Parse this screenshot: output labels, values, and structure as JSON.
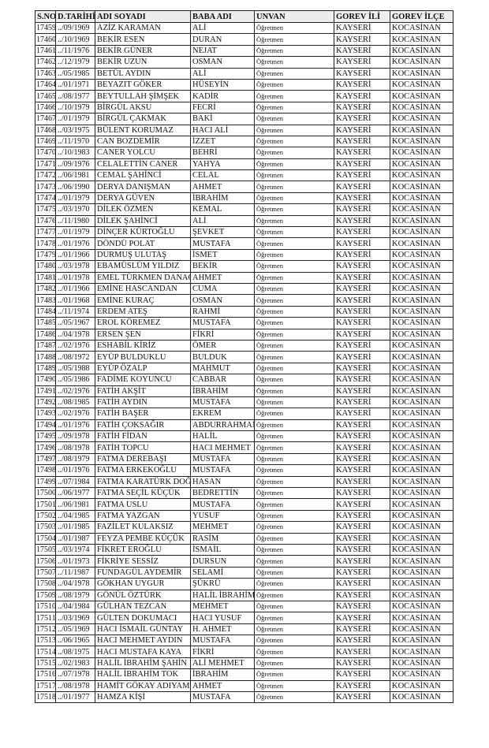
{
  "headers": [
    "S.NO",
    "D.TARİHİ",
    "ADI SOYADI",
    "BABA ADI",
    "UNVAN",
    "GOREV İLİ",
    "GOREV İLÇE"
  ],
  "rows": [
    [
      "17459",
      "../09/1969",
      "AZİZ KARAMAN",
      "ALİ",
      "Öğretmen",
      "KAYSERİ",
      "KOCASİNAN"
    ],
    [
      "17460",
      "../10/1969",
      "BEKİR ESEN",
      "DURAN",
      "Öğretmen",
      "KAYSERİ",
      "KOCASİNAN"
    ],
    [
      "17461",
      "../11/1976",
      "BEKİR GÜNER",
      "NEJAT",
      "Öğretmen",
      "KAYSERİ",
      "KOCASİNAN"
    ],
    [
      "17462",
      "../12/1979",
      "BEKİR UZUN",
      "OSMAN",
      "Öğretmen",
      "KAYSERİ",
      "KOCASİNAN"
    ],
    [
      "17463",
      "../05/1985",
      "BETÜL AYDIN",
      "ALİ",
      "Öğretmen",
      "KAYSERİ",
      "KOCASİNAN"
    ],
    [
      "17464",
      "../01/1971",
      "BEYAZIT GÖKER",
      "HÜSEYİN",
      "Öğretmen",
      "KAYSERİ",
      "KOCASİNAN"
    ],
    [
      "17465",
      "../08/1977",
      "BEYTULLAH ŞİMŞEK",
      "KADİR",
      "Öğretmen",
      "KAYSERİ",
      "KOCASİNAN"
    ],
    [
      "17466",
      "../10/1979",
      "BİRGÜL AKSU",
      "FECRİ",
      "Öğretmen",
      "KAYSERİ",
      "KOCASİNAN"
    ],
    [
      "17467",
      "../01/1979",
      "BİRGÜL ÇAKMAK",
      "BAKİ",
      "Öğretmen",
      "KAYSERİ",
      "KOCASİNAN"
    ],
    [
      "17468",
      "../03/1975",
      "BÜLENT KORUMAZ",
      "HACI ALİ",
      "Öğretmen",
      "KAYSERİ",
      "KOCASİNAN"
    ],
    [
      "17469",
      "../11/1970",
      "CAN BOZDEMİR",
      "İZZET",
      "Öğretmen",
      "KAYSERİ",
      "KOCASİNAN"
    ],
    [
      "17470",
      "../10/1983",
      "CANER YOLCU",
      "BEHRİ",
      "Öğretmen",
      "KAYSERİ",
      "KOCASİNAN"
    ],
    [
      "17471",
      "../09/1976",
      "CELALETTİN CANER",
      "YAHYA",
      "Öğretmen",
      "KAYSERİ",
      "KOCASİNAN"
    ],
    [
      "17472",
      "../06/1981",
      "CEMAL ŞAHİNCİ",
      "CELAL",
      "Öğretmen",
      "KAYSERİ",
      "KOCASİNAN"
    ],
    [
      "17473",
      "../06/1990",
      "DERYA DANIŞMAN",
      "AHMET",
      "Öğretmen",
      "KAYSERİ",
      "KOCASİNAN"
    ],
    [
      "17474",
      "../01/1979",
      "DERYA GÜVEN",
      "İBRAHİM",
      "Öğretmen",
      "KAYSERİ",
      "KOCASİNAN"
    ],
    [
      "17475",
      "../03/1970",
      "DİLEK ÖZMEN",
      "KEMAL",
      "Öğretmen",
      "KAYSERİ",
      "KOCASİNAN"
    ],
    [
      "17476",
      "../11/1980",
      "DİLEK ŞAHİNCİ",
      "ALİ",
      "Öğretmen",
      "KAYSERİ",
      "KOCASİNAN"
    ],
    [
      "17477",
      "../01/1979",
      "DİNÇER KÜRTOĞLU",
      "ŞEVKET",
      "Öğretmen",
      "KAYSERİ",
      "KOCASİNAN"
    ],
    [
      "17478",
      "../01/1976",
      "DÖNDÜ POLAT",
      "MUSTAFA",
      "Öğretmen",
      "KAYSERİ",
      "KOCASİNAN"
    ],
    [
      "17479",
      "../01/1966",
      "DURMUŞ ULUTAŞ",
      "İSMET",
      "Öğretmen",
      "KAYSERİ",
      "KOCASİNAN"
    ],
    [
      "17480",
      "../03/1978",
      "EBAMÜSLÜM YILDIZ",
      "BEKİR",
      "Öğretmen",
      "KAYSERİ",
      "KOCASİNAN"
    ],
    [
      "17481",
      "../01/1978",
      "EMEL TÜRKMEN DANACI",
      "AHMET",
      "Öğretmen",
      "KAYSERİ",
      "KOCASİNAN"
    ],
    [
      "17482",
      "../01/1966",
      "EMİNE HASCANDAN",
      "CUMA",
      "Öğretmen",
      "KAYSERİ",
      "KOCASİNAN"
    ],
    [
      "17483",
      "../01/1968",
      "EMİNE KURAÇ",
      "OSMAN",
      "Öğretmen",
      "KAYSERİ",
      "KOCASİNAN"
    ],
    [
      "17484",
      "../11/1974",
      "ERDEM ATEŞ",
      "RAHMİ",
      "Öğretmen",
      "KAYSERİ",
      "KOCASİNAN"
    ],
    [
      "17485",
      "../05/1967",
      "EROL KÖREMEZ",
      "MUSTAFA",
      "Öğretmen",
      "KAYSERİ",
      "KOCASİNAN"
    ],
    [
      "17486",
      "../04/1978",
      "ERSEN ŞEN",
      "FİKRİ",
      "Öğretmen",
      "KAYSERİ",
      "KOCASİNAN"
    ],
    [
      "17487",
      "../02/1976",
      "ESHABİL KİRİZ",
      "ÖMER",
      "Öğretmen",
      "KAYSERİ",
      "KOCASİNAN"
    ],
    [
      "17488",
      "../08/1972",
      "EYÜP BULDUKLU",
      "BULDUK",
      "Öğretmen",
      "KAYSERİ",
      "KOCASİNAN"
    ],
    [
      "17489",
      "../05/1988",
      "EYÜP ÖZALP",
      "MAHMUT",
      "Öğretmen",
      "KAYSERİ",
      "KOCASİNAN"
    ],
    [
      "17490",
      "../05/1986",
      "FADİME KOYUNCU",
      "CABBAR",
      "Öğretmen",
      "KAYSERİ",
      "KOCASİNAN"
    ],
    [
      "17491",
      "../02/1976",
      "FATİH AKŞİT",
      "İBRAHİM",
      "Öğretmen",
      "KAYSERİ",
      "KOCASİNAN"
    ],
    [
      "17492",
      "../08/1985",
      "FATİH AYDIN",
      "MUSTAFA",
      "Öğretmen",
      "KAYSERİ",
      "KOCASİNAN"
    ],
    [
      "17493",
      "../02/1976",
      "FATİH BAŞER",
      "EKREM",
      "Öğretmen",
      "KAYSERİ",
      "KOCASİNAN"
    ],
    [
      "17494",
      "../01/1976",
      "FATİH ÇOKSAĞIR",
      "ABDURRAHMAN",
      "Öğretmen",
      "KAYSERİ",
      "KOCASİNAN"
    ],
    [
      "17495",
      "../09/1978",
      "FATİH FİDAN",
      "HALİL",
      "Öğretmen",
      "KAYSERİ",
      "KOCASİNAN"
    ],
    [
      "17496",
      "../08/1978",
      "FATİH TOPCU",
      "HACI MEHMET",
      "Öğretmen",
      "KAYSERİ",
      "KOCASİNAN"
    ],
    [
      "17497",
      "../08/1979",
      "FATMA DEREBAŞI",
      "MUSTAFA",
      "Öğretmen",
      "KAYSERİ",
      "KOCASİNAN"
    ],
    [
      "17498",
      "../01/1976",
      "FATMA ERKEKOĞLU",
      "MUSTAFA",
      "Öğretmen",
      "KAYSERİ",
      "KOCASİNAN"
    ],
    [
      "17499",
      "../07/1984",
      "FATMA KARATÜRK DOĞRU",
      "HASAN",
      "Öğretmen",
      "KAYSERİ",
      "KOCASİNAN"
    ],
    [
      "17500",
      "../06/1977",
      "FATMA SEÇİL KÜÇÜK",
      "BEDRETTİN",
      "Öğretmen",
      "KAYSERİ",
      "KOCASİNAN"
    ],
    [
      "17501",
      "../06/1981",
      "FATMA USLU",
      "MUSTAFA",
      "Öğretmen",
      "KAYSERİ",
      "KOCASİNAN"
    ],
    [
      "17502",
      "../04/1985",
      "FATMA YAZGAN",
      "YUSUF",
      "Öğretmen",
      "KAYSERİ",
      "KOCASİNAN"
    ],
    [
      "17503",
      "../01/1985",
      "FAZİLET KULAKSIZ",
      "MEHMET",
      "Öğretmen",
      "KAYSERİ",
      "KOCASİNAN"
    ],
    [
      "17504",
      "../01/1987",
      "FEYZA PEMBE KÜÇÜK",
      "RASİM",
      "Öğretmen",
      "KAYSERİ",
      "KOCASİNAN"
    ],
    [
      "17505",
      "../03/1974",
      "FİKRET EROĞLU",
      "İSMAİL",
      "Öğretmen",
      "KAYSERİ",
      "KOCASİNAN"
    ],
    [
      "17506",
      "../01/1973",
      "FİKRİYE SESSİZ",
      "DURSUN",
      "Öğretmen",
      "KAYSERİ",
      "KOCASİNAN"
    ],
    [
      "17507",
      "../11/1987",
      "FUNDAGÜL AYDEMİR",
      "SELAMİ",
      "Öğretmen",
      "KAYSERİ",
      "KOCASİNAN"
    ],
    [
      "17508",
      "../04/1978",
      "GÖKHAN UYGUR",
      "ŞÜKRÜ",
      "Öğretmen",
      "KAYSERİ",
      "KOCASİNAN"
    ],
    [
      "17509",
      "../08/1979",
      "GÖNÜL ÖZTÜRK",
      "HALİL İBRAHİM",
      "Öğretmen",
      "KAYSERİ",
      "KOCASİNAN"
    ],
    [
      "17510",
      "../04/1984",
      "GÜLHAN TEZCAN",
      "MEHMET",
      "Öğretmen",
      "KAYSERİ",
      "KOCASİNAN"
    ],
    [
      "17511",
      "../03/1969",
      "GÜLTEN DOKUMACI",
      "HACI YUSUF",
      "Öğretmen",
      "KAYSERİ",
      "KOCASİNAN"
    ],
    [
      "17512",
      "../05/1969",
      "HACI İSMAİL GÜNTAY",
      "H. AHMET",
      "Öğretmen",
      "KAYSERİ",
      "KOCASİNAN"
    ],
    [
      "17513",
      "../06/1965",
      "HACI MEHMET AYDIN",
      "MUSTAFA",
      "Öğretmen",
      "KAYSERİ",
      "KOCASİNAN"
    ],
    [
      "17514",
      "../08/1975",
      "HACI MUSTAFA KAYA",
      "FİKRİ",
      "Öğretmen",
      "KAYSERİ",
      "KOCASİNAN"
    ],
    [
      "17515",
      "../02/1983",
      "HALİL İBRAHİM ŞAHİN",
      "ALİ MEHMET",
      "Öğretmen",
      "KAYSERİ",
      "KOCASİNAN"
    ],
    [
      "17516",
      "../07/1978",
      "HALİL İBRAHİM TOK",
      "İBRAHİM",
      "Öğretmen",
      "KAYSERİ",
      "KOCASİNAN"
    ],
    [
      "17517",
      "../08/1978",
      "HAMİT GÖKAY ADIYAMAN",
      "AHMET",
      "Öğretmen",
      "KAYSERİ",
      "KOCASİNAN"
    ],
    [
      "17518",
      "../01/1977",
      "HAMZA KİŞİ",
      "MUSTAFA",
      "Öğretmen",
      "KAYSERİ",
      "KOCASİNAN"
    ]
  ]
}
